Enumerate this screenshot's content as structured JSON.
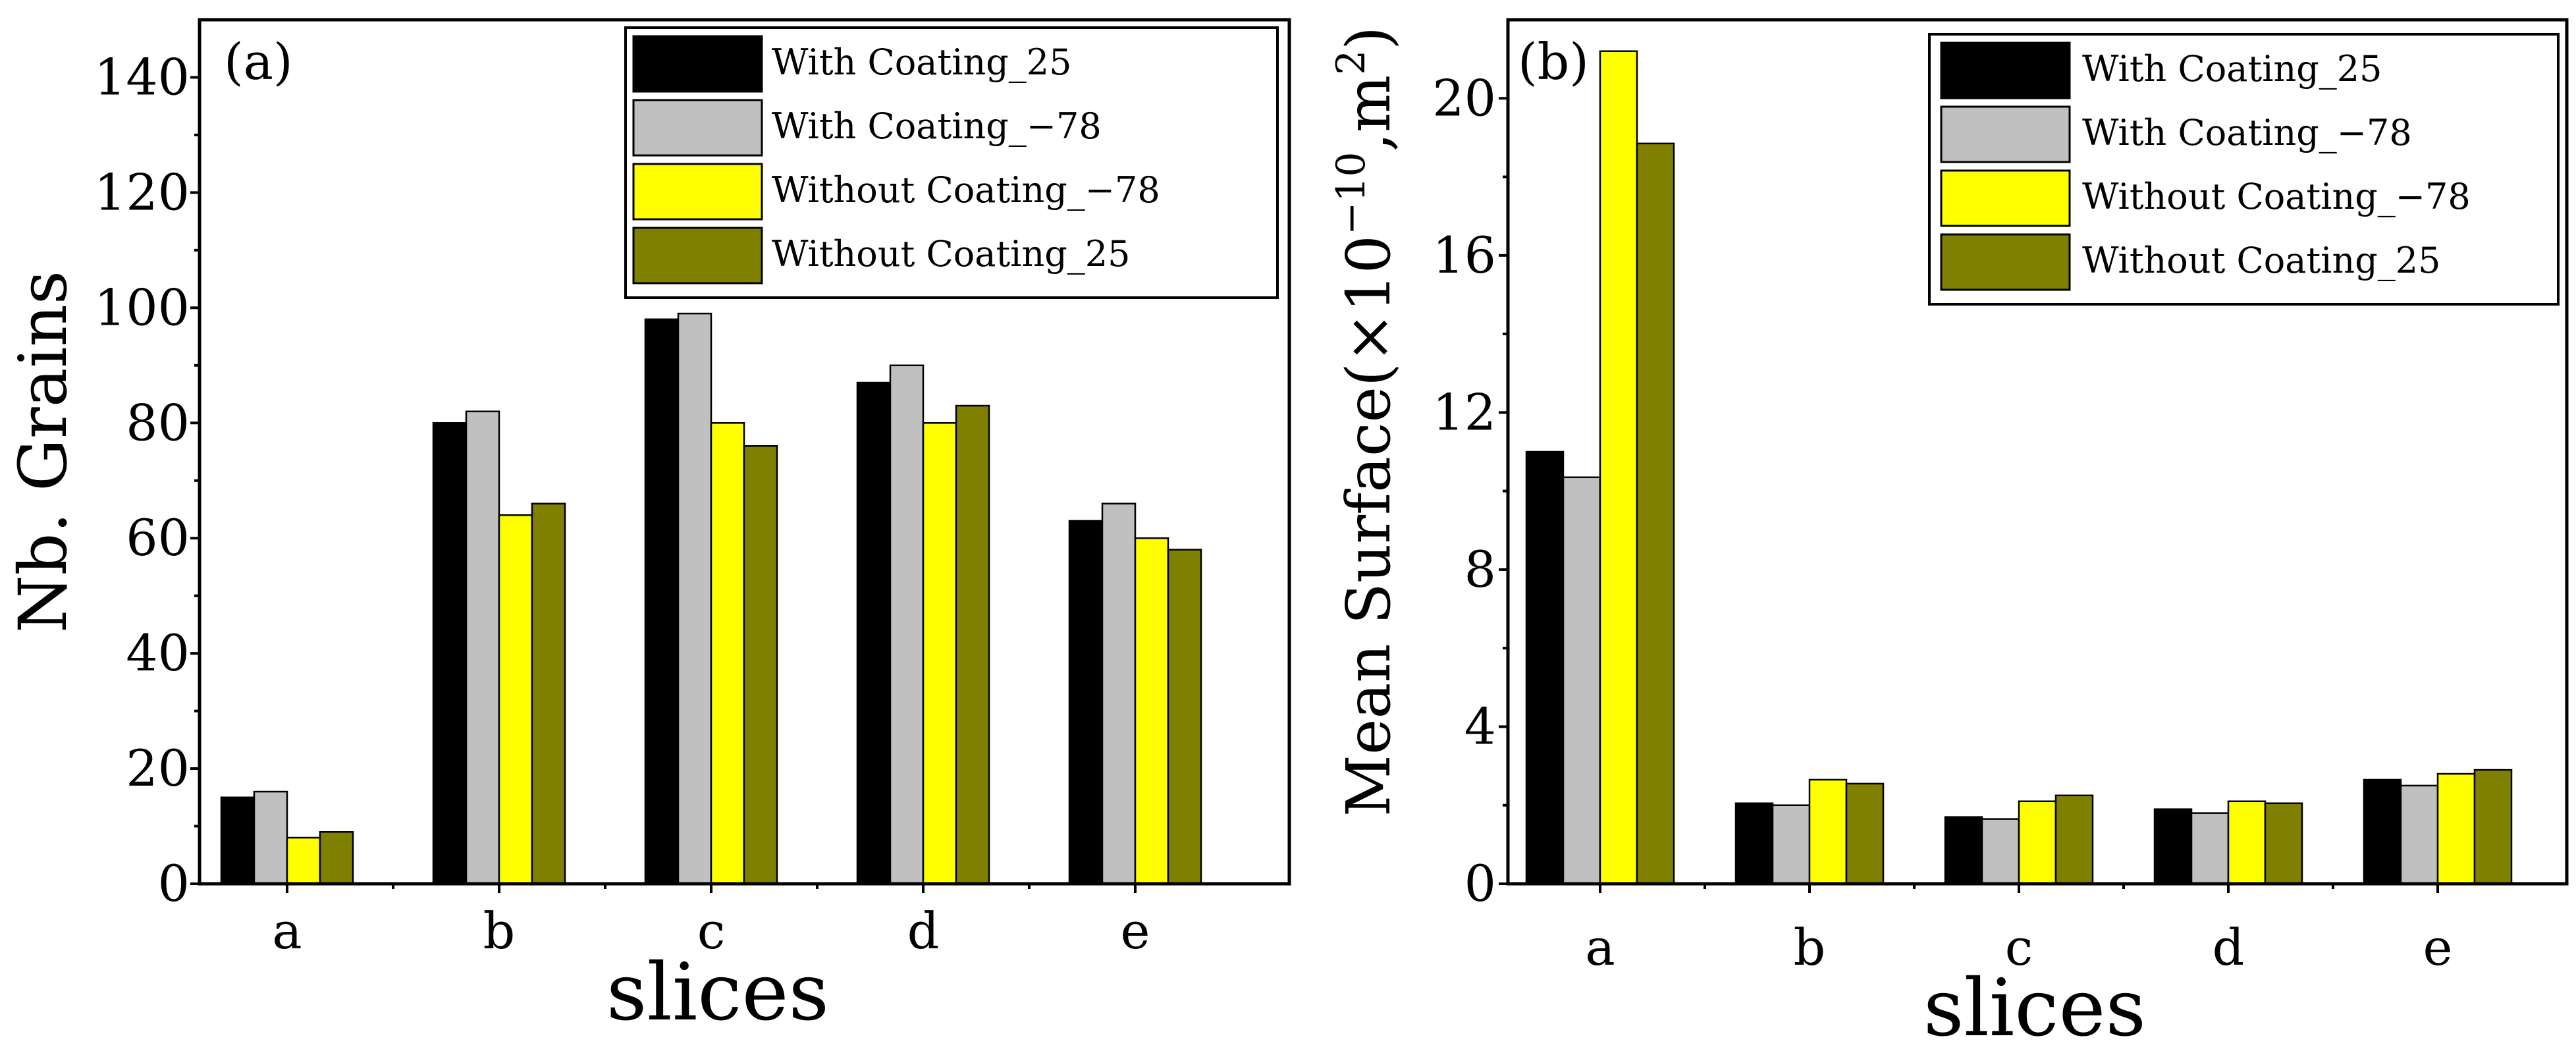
{
  "chart_data": [
    {
      "panel": "(a)",
      "type": "bar",
      "categories": [
        "a",
        "b",
        "c",
        "d",
        "e"
      ],
      "series": [
        {
          "name": "With Coating_25",
          "color": "#000000",
          "values": [
            15,
            80,
            98,
            87,
            63
          ]
        },
        {
          "name": "With Coating_−78",
          "color": "#c0c0c0",
          "values": [
            16,
            82,
            99,
            90,
            66
          ]
        },
        {
          "name": "Without Coating_−78",
          "color": "#ffff00",
          "values": [
            8,
            64,
            80,
            80,
            60
          ]
        },
        {
          "name": "Without Coating_25",
          "color": "#808000",
          "values": [
            9,
            66,
            76,
            83,
            58
          ]
        }
      ],
      "xlabel": "slices",
      "ylabel": "Nb. Grains",
      "ylim": [
        0,
        150
      ],
      "yticks": [
        "0",
        "20",
        "40",
        "60",
        "80",
        "100",
        "120",
        "140"
      ],
      "ytick_values": [
        0,
        20,
        40,
        60,
        80,
        100,
        120,
        140
      ],
      "legend_position": "top-right"
    },
    {
      "panel": "(b)",
      "type": "bar",
      "categories": [
        "a",
        "b",
        "c",
        "d",
        "e"
      ],
      "series": [
        {
          "name": "With Coating_25",
          "color": "#000000",
          "values": [
            11.0,
            2.05,
            1.7,
            1.9,
            2.65
          ]
        },
        {
          "name": "With Coating_−78",
          "color": "#c0c0c0",
          "values": [
            10.35,
            2.0,
            1.65,
            1.8,
            2.5
          ]
        },
        {
          "name": "Without Coating_−78",
          "color": "#ffff00",
          "values": [
            21.2,
            2.65,
            2.1,
            2.1,
            2.8
          ]
        },
        {
          "name": "Without Coating_25",
          "color": "#808000",
          "values": [
            18.85,
            2.55,
            2.25,
            2.05,
            2.9
          ]
        }
      ],
      "xlabel": "slices",
      "ylabel_main": "Mean Surface(×10",
      "ylabel_exp": "−10",
      "ylabel_unit": ",m",
      "ylabel_unit_exp": "2",
      "ylabel_close": ")",
      "ylim": [
        0,
        22
      ],
      "yticks": [
        "0",
        "4",
        "8",
        "12",
        "16",
        "20"
      ],
      "ytick_values": [
        0,
        4,
        8,
        12,
        16,
        20
      ],
      "legend_position": "top-right"
    }
  ]
}
